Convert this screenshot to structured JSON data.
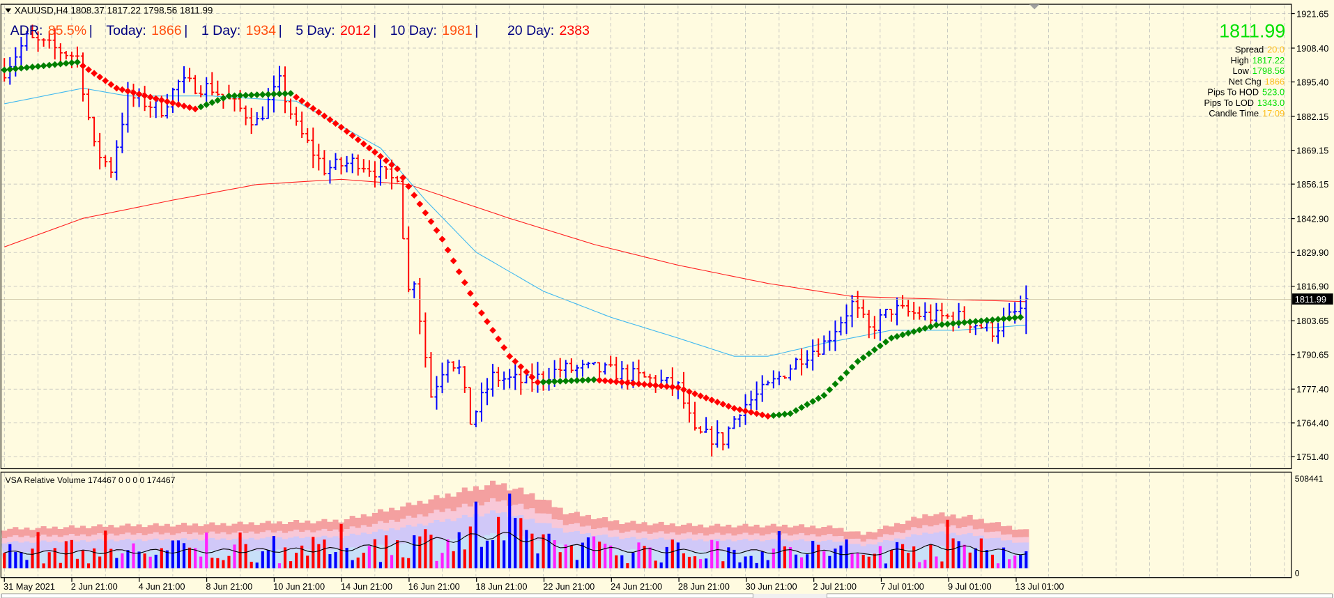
{
  "header": {
    "symbol_line": "XAUUSD,H4  1808.37 1817.22 1798.56 1811.99",
    "adr": [
      {
        "label": "ADR:",
        "value": "85.5%",
        "sep": "|"
      },
      {
        "label": "Today:",
        "value": "1866",
        "sep": "|"
      },
      {
        "label": "1 Day:",
        "value": "1934",
        "sep": "|"
      },
      {
        "label": "5 Day:",
        "value": "2012",
        "sep": "|"
      },
      {
        "label": "10 Day:",
        "value": "1981",
        "sep": "|"
      },
      {
        "label": "20 Day:",
        "value": "2383",
        "sep": ""
      }
    ]
  },
  "info_panel": {
    "price": "1811.99",
    "rows": [
      {
        "label": "Spread",
        "value": "20.0",
        "color": "#ffc020"
      },
      {
        "label": "High",
        "value": "1817.22",
        "color": "#00e000"
      },
      {
        "label": "Low",
        "value": "1798.56",
        "color": "#00e000"
      },
      {
        "label": "Net Chg",
        "value": "1866",
        "color": "#ffc020"
      },
      {
        "label": "Pips To HOD",
        "value": "523.0",
        "color": "#00e000"
      },
      {
        "label": "Pips To LOD",
        "value": "1343.0",
        "color": "#00e000"
      },
      {
        "label": "Candle Time",
        "value": "17:09",
        "color": "#ffc020"
      }
    ]
  },
  "price_axis": [
    "1921.65",
    "1908.40",
    "1895.40",
    "1882.15",
    "1869.15",
    "1856.15",
    "1842.90",
    "1829.90",
    "1816.90",
    "1803.65",
    "1790.65",
    "1777.40",
    "1764.40",
    "1751.40"
  ],
  "current_price_tag": "1811.99",
  "volume_panel": {
    "title": "VSA Relative Volume 174467 0 0 0 0 174467",
    "axis_max": "508441",
    "axis_min": "0"
  },
  "date_axis": [
    "31 May 2021",
    "2 Jun 21:00",
    "4 Jun 21:00",
    "8 Jun 21:00",
    "10 Jun 21:00",
    "14 Jun 21:00",
    "16 Jun 21:00",
    "18 Jun 21:00",
    "22 Jun 21:00",
    "24 Jun 21:00",
    "28 Jun 21:00",
    "30 Jun 21:00",
    "2 Jul 21:00",
    "7 Jul 01:00",
    "9 Jul 01:00",
    "13 Jul 01:00"
  ],
  "chart_data": {
    "type": "ohlc",
    "symbol": "XAUUSD",
    "timeframe": "H4",
    "last_bar": {
      "open": 1808.37,
      "high": 1817.22,
      "low": 1798.56,
      "close": 1811.99
    },
    "ylim": [
      1745,
      1925
    ],
    "close_path": [
      [
        0,
        1900
      ],
      [
        4,
        1912
      ],
      [
        13,
        1905
      ],
      [
        16,
        1870
      ],
      [
        19,
        1862
      ],
      [
        22,
        1890
      ],
      [
        28,
        1885
      ],
      [
        31,
        1895
      ],
      [
        37,
        1893
      ],
      [
        45,
        1880
      ],
      [
        49,
        1895
      ],
      [
        52,
        1878
      ],
      [
        57,
        1862
      ],
      [
        63,
        1865
      ],
      [
        69,
        1858
      ],
      [
        70,
        1860
      ],
      [
        72,
        1815
      ],
      [
        73,
        1820
      ],
      [
        76,
        1775
      ],
      [
        79,
        1790
      ],
      [
        81,
        1785
      ],
      [
        83,
        1765
      ],
      [
        87,
        1782
      ],
      [
        93,
        1780
      ],
      [
        99,
        1785
      ],
      [
        105,
        1785
      ],
      [
        111,
        1783
      ],
      [
        117,
        1780
      ],
      [
        120,
        1778
      ],
      [
        123,
        1760
      ],
      [
        128,
        1758
      ],
      [
        131,
        1770
      ],
      [
        136,
        1778
      ],
      [
        142,
        1790
      ],
      [
        146,
        1795
      ],
      [
        151,
        1810
      ],
      [
        154,
        1800
      ],
      [
        158,
        1808
      ],
      [
        163,
        1806
      ],
      [
        166,
        1805
      ],
      [
        170,
        1805
      ],
      [
        176,
        1800
      ],
      [
        181,
        1808
      ],
      [
        182,
        1812
      ]
    ],
    "ma_fast_blue": [
      [
        0,
        1887
      ],
      [
        14,
        1893
      ],
      [
        22,
        1890
      ],
      [
        37,
        1890
      ],
      [
        52,
        1888
      ],
      [
        67,
        1870
      ],
      [
        75,
        1850
      ],
      [
        84,
        1830
      ],
      [
        96,
        1815
      ],
      [
        108,
        1805
      ],
      [
        120,
        1797
      ],
      [
        130,
        1790
      ],
      [
        136,
        1790
      ],
      [
        146,
        1795
      ],
      [
        158,
        1800
      ],
      [
        170,
        1800
      ],
      [
        182,
        1802
      ]
    ],
    "ma_slow_red": [
      [
        0,
        1832
      ],
      [
        14,
        1843
      ],
      [
        30,
        1850
      ],
      [
        45,
        1856
      ],
      [
        60,
        1858
      ],
      [
        72,
        1856
      ],
      [
        90,
        1843
      ],
      [
        105,
        1833
      ],
      [
        120,
        1825
      ],
      [
        136,
        1818
      ],
      [
        151,
        1813
      ],
      [
        166,
        1812
      ],
      [
        182,
        1811
      ]
    ],
    "trend_line_diamonds": [
      [
        0,
        1900
      ],
      [
        13,
        1903
      ],
      [
        20,
        1893
      ],
      [
        34,
        1885
      ],
      [
        40,
        1890
      ],
      [
        51,
        1891
      ],
      [
        60,
        1878
      ],
      [
        70,
        1862
      ],
      [
        78,
        1835
      ],
      [
        84,
        1810
      ],
      [
        90,
        1790
      ],
      [
        95,
        1780
      ],
      [
        105,
        1781
      ],
      [
        120,
        1778
      ],
      [
        130,
        1770
      ],
      [
        136,
        1767
      ],
      [
        140,
        1768
      ],
      [
        146,
        1775
      ],
      [
        152,
        1788
      ],
      [
        158,
        1797
      ],
      [
        166,
        1802
      ],
      [
        181,
        1805
      ]
    ],
    "volume_envelope": [
      [
        0,
        230000
      ],
      [
        20,
        250000
      ],
      [
        40,
        260000
      ],
      [
        60,
        280000
      ],
      [
        72,
        370000
      ],
      [
        85,
        480000
      ],
      [
        88,
        500000
      ],
      [
        95,
        420000
      ],
      [
        100,
        330000
      ],
      [
        110,
        270000
      ],
      [
        125,
        250000
      ],
      [
        140,
        250000
      ],
      [
        148,
        240000
      ],
      [
        153,
        200000
      ],
      [
        160,
        270000
      ],
      [
        165,
        320000
      ],
      [
        172,
        300000
      ],
      [
        182,
        220000
      ]
    ],
    "colors": {
      "up_bar": "#0000ff",
      "down_bar": "#ff0000",
      "ma_fast": "#40b8f0",
      "ma_slow": "#ff2020",
      "trend_up": "#008000",
      "trend_down": "#ff0000",
      "background": "#fffbe0"
    }
  }
}
